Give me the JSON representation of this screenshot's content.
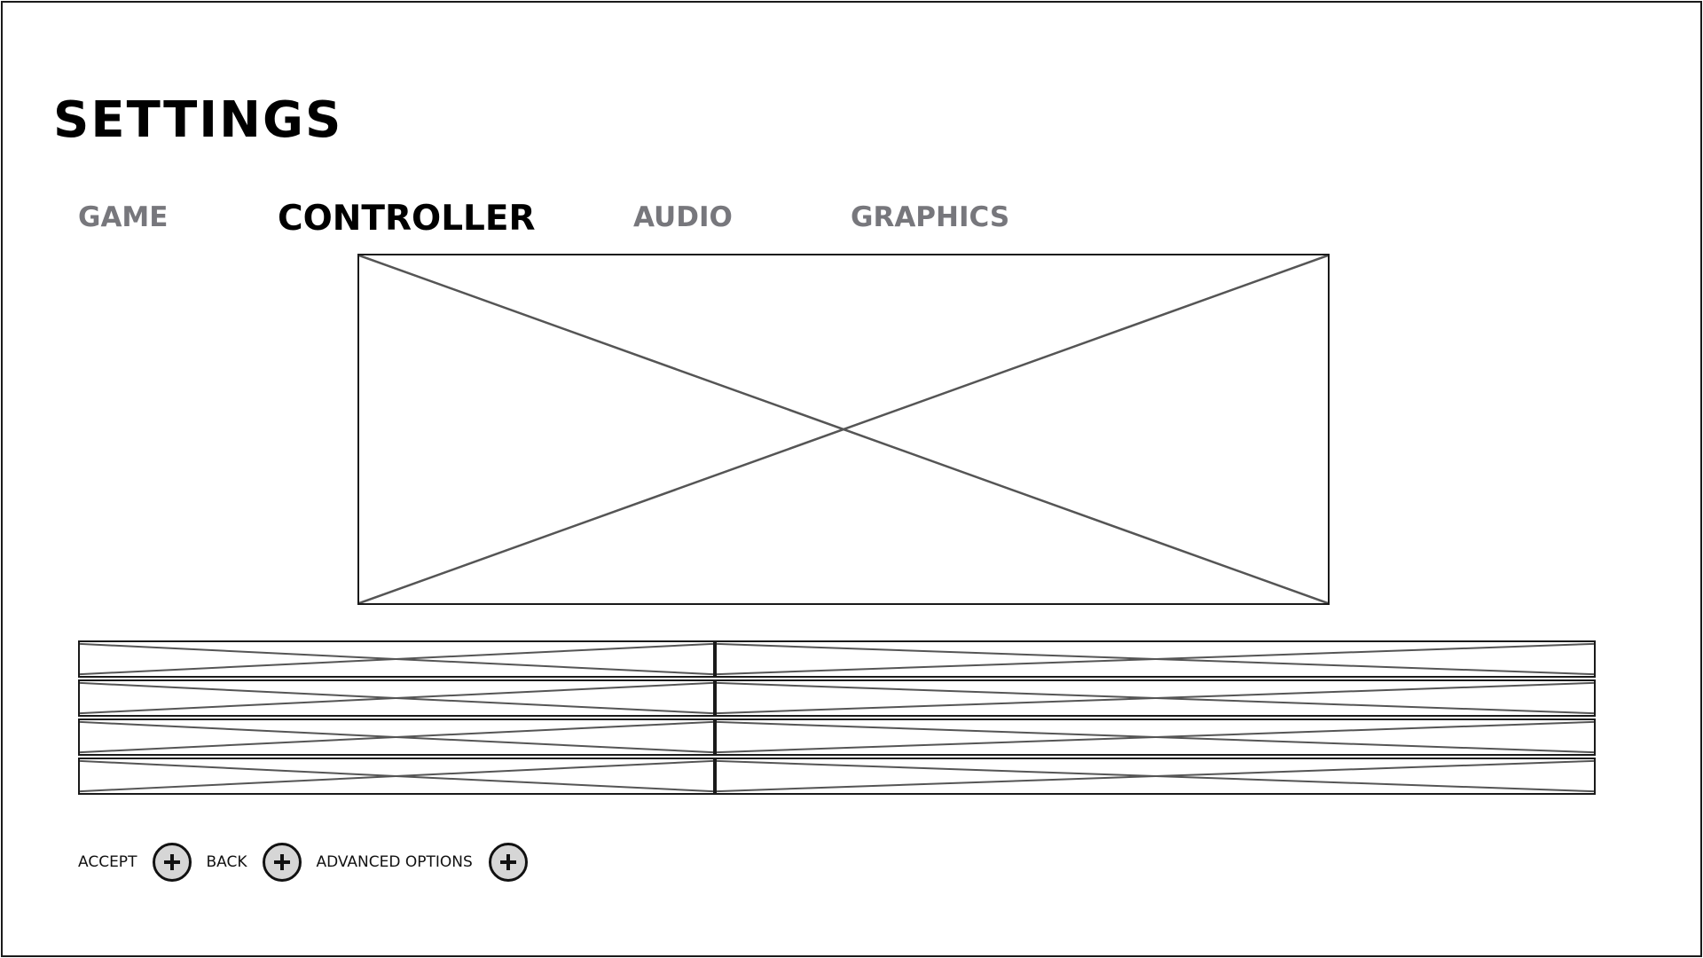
{
  "header": {
    "title": "SETTINGS"
  },
  "tabs": [
    {
      "label": "GAME",
      "active": false
    },
    {
      "label": "CONTROLLER",
      "active": true
    },
    {
      "label": "AUDIO",
      "active": false
    },
    {
      "label": "GRAPHICS",
      "active": false
    }
  ],
  "footer": {
    "accept_label": "ACCEPT",
    "accept_icon": "plus-icon",
    "back_label": "BACK",
    "back_icon": "plus-icon",
    "advanced_label": "ADVANCED OPTIONS",
    "advanced_icon": "plus-icon"
  },
  "colors": {
    "active_tab": "#000000",
    "inactive_tab": "#77777c",
    "button_fill": "#d6d6d6"
  }
}
